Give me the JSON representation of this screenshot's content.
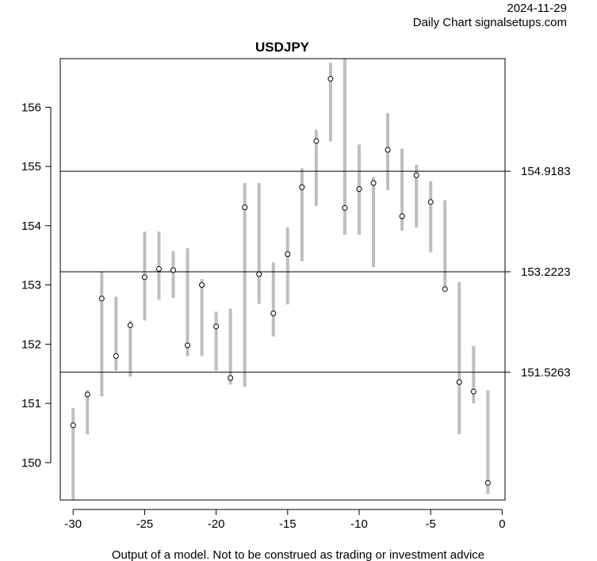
{
  "header": {
    "date": "2024-11-29",
    "source": "Daily Chart signalsetups.com"
  },
  "footer": {
    "disclaimer": "Output of a model. Not to be construed as trading or investment advice"
  },
  "colors": {
    "range_bar": "#bebebe",
    "hline": "#000000",
    "point_fill": "#ffffff",
    "point_stroke": "#000000"
  },
  "chart_data": {
    "type": "scatter",
    "title": "USDJPY",
    "xlabel": "",
    "ylabel": "",
    "xlim": [
      -30.9,
      0.2
    ],
    "ylim": [
      149.37,
      156.82
    ],
    "xticks": [
      -30,
      -25,
      -20,
      -15,
      -10,
      -5,
      0
    ],
    "yticks": [
      150,
      151,
      152,
      153,
      154,
      155,
      156
    ],
    "grid": false,
    "hlines": [
      {
        "value": 154.9183,
        "label": "154.9183"
      },
      {
        "value": 153.2223,
        "label": "153.2223"
      },
      {
        "value": 151.5263,
        "label": "151.5263"
      }
    ],
    "points": [
      {
        "x": -30,
        "low": 149.37,
        "high": 150.92,
        "value": 150.63
      },
      {
        "x": -29,
        "low": 150.48,
        "high": 151.22,
        "value": 151.15
      },
      {
        "x": -28,
        "low": 151.12,
        "high": 153.22,
        "value": 152.77
      },
      {
        "x": -27,
        "low": 151.55,
        "high": 152.8,
        "value": 151.8
      },
      {
        "x": -26,
        "low": 151.45,
        "high": 152.4,
        "value": 152.32
      },
      {
        "x": -25,
        "low": 152.4,
        "high": 153.9,
        "value": 153.13
      },
      {
        "x": -24,
        "low": 152.75,
        "high": 153.9,
        "value": 153.27
      },
      {
        "x": -23,
        "low": 152.78,
        "high": 153.57,
        "value": 153.25
      },
      {
        "x": -22,
        "low": 151.8,
        "high": 153.62,
        "value": 151.98
      },
      {
        "x": -21,
        "low": 151.8,
        "high": 153.1,
        "value": 153.0
      },
      {
        "x": -20,
        "low": 151.55,
        "high": 152.55,
        "value": 152.3
      },
      {
        "x": -19,
        "low": 151.32,
        "high": 152.6,
        "value": 151.43
      },
      {
        "x": -18,
        "low": 151.28,
        "high": 154.72,
        "value": 154.31
      },
      {
        "x": -17,
        "low": 152.68,
        "high": 154.72,
        "value": 153.18
      },
      {
        "x": -16,
        "low": 152.13,
        "high": 153.38,
        "value": 152.52
      },
      {
        "x": -15,
        "low": 152.67,
        "high": 153.97,
        "value": 153.52
      },
      {
        "x": -14,
        "low": 153.4,
        "high": 154.97,
        "value": 154.65
      },
      {
        "x": -13,
        "low": 154.33,
        "high": 155.62,
        "value": 155.43
      },
      {
        "x": -12,
        "low": 155.42,
        "high": 156.75,
        "value": 156.48
      },
      {
        "x": -11,
        "low": 153.85,
        "high": 156.82,
        "value": 154.3
      },
      {
        "x": -10,
        "low": 153.85,
        "high": 155.37,
        "value": 154.62
      },
      {
        "x": -9,
        "low": 153.3,
        "high": 154.82,
        "value": 154.72
      },
      {
        "x": -8,
        "low": 154.6,
        "high": 155.9,
        "value": 155.28
      },
      {
        "x": -7,
        "low": 153.92,
        "high": 155.3,
        "value": 154.16
      },
      {
        "x": -6,
        "low": 153.97,
        "high": 155.03,
        "value": 154.85
      },
      {
        "x": -5,
        "low": 153.55,
        "high": 154.75,
        "value": 154.4
      },
      {
        "x": -4,
        "low": 152.92,
        "high": 154.43,
        "value": 152.93
      },
      {
        "x": -3,
        "low": 150.48,
        "high": 153.05,
        "value": 151.36
      },
      {
        "x": -2,
        "low": 151.0,
        "high": 151.97,
        "value": 151.2
      },
      {
        "x": -1,
        "low": 149.47,
        "high": 151.22,
        "value": 149.66
      }
    ]
  }
}
